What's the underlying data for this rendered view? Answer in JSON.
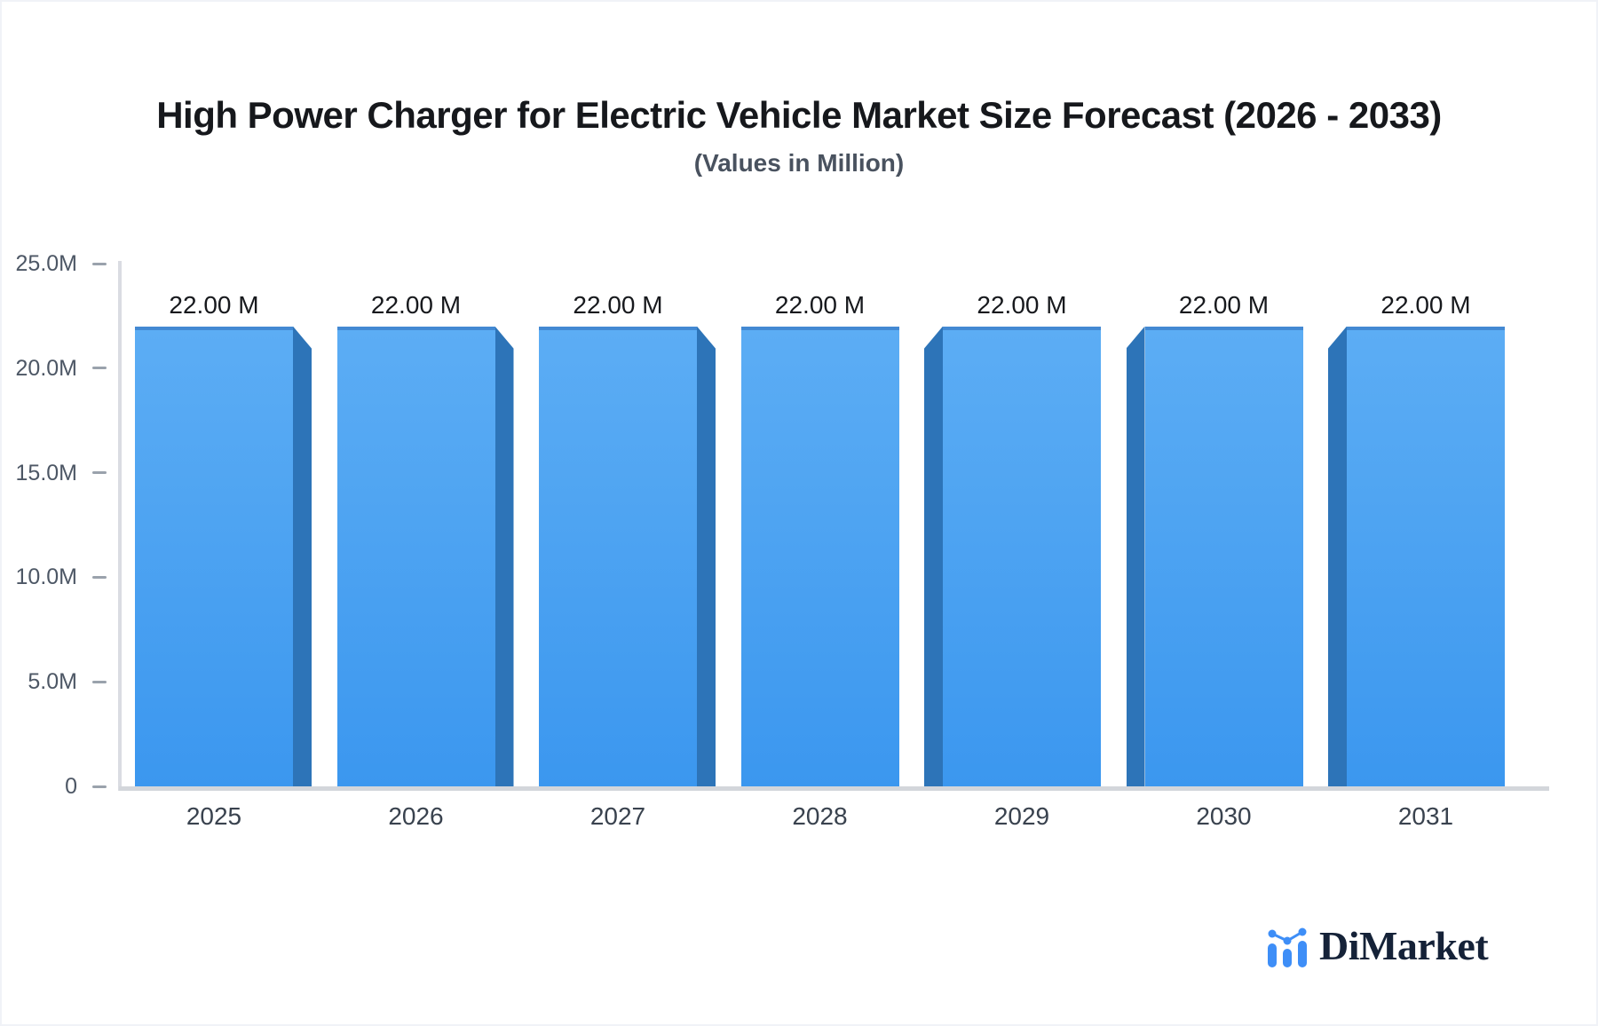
{
  "chart_data": {
    "type": "bar",
    "title": "High Power Charger for Electric Vehicle Market Size Forecast (2026 - 2033)",
    "subtitle": "(Values in Million)",
    "categories": [
      "2025",
      "2026",
      "2027",
      "2028",
      "2029",
      "2030",
      "2031"
    ],
    "values": [
      22,
      22,
      22,
      22,
      22,
      22,
      22
    ],
    "value_labels": [
      "22.00 M",
      "22.00 M",
      "22.00 M",
      "22.00 M",
      "22.00 M",
      "22.00 M",
      "22.00 M"
    ],
    "unit": "Million",
    "xlabel": "",
    "ylabel": "",
    "ylim": [
      0,
      25
    ],
    "yticks": [
      {
        "value": 0,
        "label": "0"
      },
      {
        "value": 5,
        "label": "5.0M"
      },
      {
        "value": 10,
        "label": "10.0M"
      },
      {
        "value": 15,
        "label": "15.0M"
      },
      {
        "value": 20,
        "label": "20.0M"
      },
      {
        "value": 25,
        "label": "25.0M"
      }
    ],
    "grid": false,
    "legend": false
  },
  "footer": {
    "brand": "DiMarket"
  },
  "colors": {
    "bar_face_top": "#5cadf4",
    "bar_face_bottom": "#3b97ef",
    "bar_side": "#2d74b8",
    "bar_top_edge": "#4389d3",
    "axis_line": "#dadce2",
    "baseline": "#d3d6db",
    "logo_blue": "#3e8ef7",
    "logo_navy": "#152238"
  }
}
